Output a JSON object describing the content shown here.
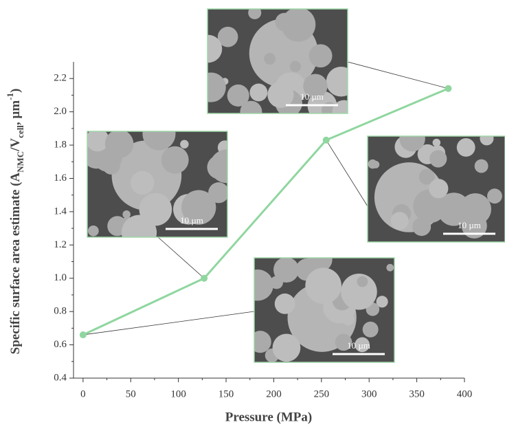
{
  "chart_data": {
    "type": "line",
    "x_label": "Pressure (MPa)",
    "y_label_parts": [
      "Specific surface area estimate (A",
      "NMC",
      "/V",
      "cell",
      ", µm",
      "-1",
      ")"
    ],
    "x": [
      0,
      127,
      255,
      383
    ],
    "values": [
      0.66,
      1.0,
      1.83,
      2.14
    ],
    "color": "#8fd69f",
    "xlim": [
      -10,
      400
    ],
    "ylim": [
      0.4,
      2.3
    ],
    "xticks": [
      0,
      50,
      100,
      150,
      200,
      250,
      300,
      350,
      400
    ],
    "xminorticks": [
      25,
      75,
      125,
      175,
      225,
      275,
      325,
      375
    ],
    "yticks": [
      0.4,
      0.6,
      0.8,
      {
        "value": 1.0,
        "label": "1.0"
      },
      1.2,
      1.4,
      1.6,
      1.8,
      {
        "value": 2.0,
        "label": "2.0"
      },
      2.2
    ],
    "yminorticks": [
      0.5,
      0.7,
      0.9,
      1.1,
      1.3,
      1.5,
      1.7,
      1.9,
      2.1
    ],
    "annotations": [
      "10 µm",
      "10 µm",
      "10 µm",
      "10 µm"
    ]
  }
}
